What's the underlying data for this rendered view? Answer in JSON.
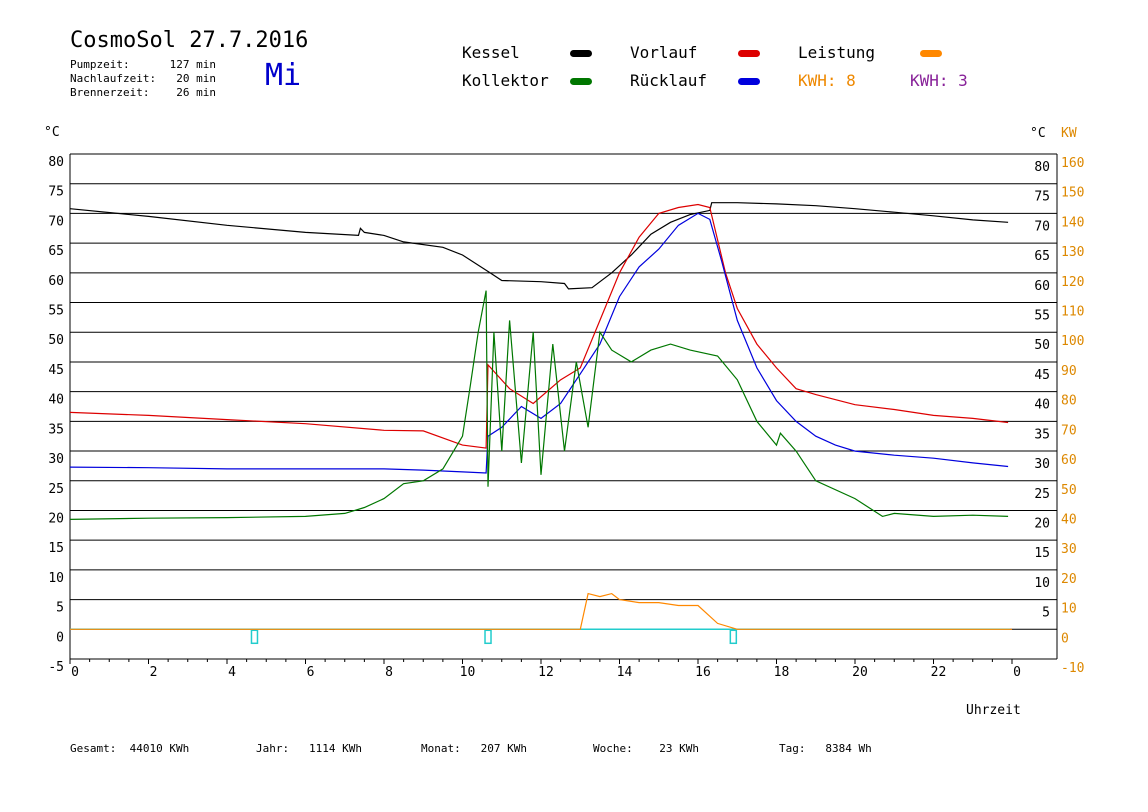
{
  "header": {
    "title": "CosmoSol 27.7.2016",
    "day": "Mi",
    "info": [
      {
        "label": "Pumpzeit:",
        "value": "127 min"
      },
      {
        "label": "Nachlaufzeit:",
        "value": "20 min"
      },
      {
        "label": "Brennerzeit:",
        "value": "26 min"
      }
    ]
  },
  "legend": {
    "kessel": {
      "label": "Kessel",
      "color": "#000000"
    },
    "vorlauf": {
      "label": "Vorlauf",
      "color": "#dd0000"
    },
    "leistung": {
      "label": "Leistung",
      "color": "#ff8800"
    },
    "kollektor": {
      "label": "Kollektor",
      "color": "#007700"
    },
    "ruecklauf": {
      "label": "Rücklauf",
      "color": "#0000dd"
    },
    "kwh1": {
      "label": "KWH: 8",
      "color": "#ee8800"
    },
    "kwh2": {
      "label": "KWH: 3",
      "color": "#882299"
    }
  },
  "footer": [
    {
      "label": "Gesamt:",
      "value": "44010 KWh"
    },
    {
      "label": "Jahr:",
      "value": "1114 KWh"
    },
    {
      "label": "Monat:",
      "value": "207 KWh"
    },
    {
      "label": "Woche:",
      "value": "23 KWh"
    },
    {
      "label": "Tag:",
      "value": "8384 Wh"
    }
  ],
  "chart_data": {
    "type": "line",
    "xlabel": "Uhrzeit",
    "xlim": [
      0,
      24
    ],
    "x_ticks": [
      "0",
      "2",
      "4",
      "6",
      "8",
      "10",
      "12",
      "14",
      "16",
      "18",
      "20",
      "22",
      "0"
    ],
    "y_left_unit": "°C",
    "y_left_ticks": [
      -5,
      0,
      5,
      10,
      15,
      20,
      25,
      30,
      35,
      40,
      45,
      50,
      55,
      60,
      65,
      70,
      75,
      80
    ],
    "y_right_unit_celsius": "°C",
    "y_right_unit_kw": "KW",
    "y_right_celsius_ticks": [
      5,
      10,
      15,
      20,
      25,
      30,
      35,
      40,
      45,
      50,
      55,
      60,
      65,
      70,
      75,
      80
    ],
    "y_right_kw_ticks": [
      -10,
      0,
      10,
      20,
      30,
      40,
      50,
      60,
      70,
      80,
      90,
      100,
      110,
      120,
      130,
      140,
      150,
      160
    ],
    "ylim": [
      -5,
      80
    ],
    "grid": "horizontal",
    "series": [
      {
        "name": "Kessel",
        "color": "#000000",
        "points": [
          [
            0,
            70.8
          ],
          [
            2,
            69.5
          ],
          [
            4,
            68
          ],
          [
            6,
            66.8
          ],
          [
            7.35,
            66.3
          ],
          [
            7.4,
            67.5
          ],
          [
            7.5,
            66.8
          ],
          [
            8,
            66.3
          ],
          [
            8.5,
            65.2
          ],
          [
            9.5,
            64.3
          ],
          [
            10,
            63
          ],
          [
            10.7,
            60
          ],
          [
            11,
            58.7
          ],
          [
            12,
            58.5
          ],
          [
            12.6,
            58.2
          ],
          [
            12.7,
            57.3
          ],
          [
            13.3,
            57.5
          ],
          [
            13.8,
            60
          ],
          [
            14.3,
            63
          ],
          [
            14.8,
            66.5
          ],
          [
            15.3,
            68.5
          ],
          [
            15.8,
            69.8
          ],
          [
            16.3,
            70.5
          ],
          [
            16.35,
            71.8
          ],
          [
            17,
            71.8
          ],
          [
            18,
            71.6
          ],
          [
            19,
            71.3
          ],
          [
            20,
            70.8
          ],
          [
            21,
            70.2
          ],
          [
            22,
            69.6
          ],
          [
            23,
            68.9
          ],
          [
            23.9,
            68.5
          ]
        ]
      },
      {
        "name": "Vorlauf",
        "color": "#dd0000",
        "points": [
          [
            0,
            36.5
          ],
          [
            2,
            36
          ],
          [
            4,
            35.3
          ],
          [
            6,
            34.6
          ],
          [
            8,
            33.5
          ],
          [
            9,
            33.4
          ],
          [
            10,
            31
          ],
          [
            10.6,
            30.5
          ],
          [
            10.65,
            44.5
          ],
          [
            11.2,
            40.5
          ],
          [
            11.8,
            38
          ],
          [
            12.5,
            42
          ],
          [
            13,
            44
          ],
          [
            13.5,
            52
          ],
          [
            14,
            60
          ],
          [
            14.5,
            66
          ],
          [
            15,
            70
          ],
          [
            15.5,
            71
          ],
          [
            16,
            71.5
          ],
          [
            16.3,
            71
          ],
          [
            16.7,
            60
          ],
          [
            17,
            54
          ],
          [
            17.5,
            48
          ],
          [
            18,
            44
          ],
          [
            18.5,
            40.5
          ],
          [
            19,
            39.5
          ],
          [
            20,
            37.8
          ],
          [
            21,
            37
          ],
          [
            22,
            36
          ],
          [
            23,
            35.5
          ],
          [
            23.9,
            34.8
          ]
        ]
      },
      {
        "name": "Rücklauf",
        "color": "#0000dd",
        "points": [
          [
            0,
            27.3
          ],
          [
            2,
            27.2
          ],
          [
            4,
            27
          ],
          [
            6,
            27
          ],
          [
            8,
            27
          ],
          [
            9,
            26.8
          ],
          [
            10,
            26.5
          ],
          [
            10.6,
            26.3
          ],
          [
            10.65,
            32.5
          ],
          [
            11,
            34
          ],
          [
            11.5,
            37.5
          ],
          [
            12,
            35.5
          ],
          [
            12.5,
            38
          ],
          [
            13,
            43
          ],
          [
            13.5,
            48
          ],
          [
            14,
            56
          ],
          [
            14.5,
            61
          ],
          [
            15,
            64
          ],
          [
            15.5,
            68
          ],
          [
            16,
            70
          ],
          [
            16.3,
            69
          ],
          [
            16.6,
            62
          ],
          [
            17,
            52
          ],
          [
            17.5,
            44
          ],
          [
            18,
            38.5
          ],
          [
            18.5,
            35
          ],
          [
            19,
            32.5
          ],
          [
            19.5,
            31
          ],
          [
            20,
            30
          ],
          [
            21,
            29.3
          ],
          [
            22,
            28.8
          ],
          [
            23,
            28
          ],
          [
            23.9,
            27.4
          ]
        ]
      },
      {
        "name": "Kollektor",
        "color": "#007700",
        "points": [
          [
            0,
            18.5
          ],
          [
            2,
            18.7
          ],
          [
            4,
            18.8
          ],
          [
            6,
            19
          ],
          [
            7,
            19.5
          ],
          [
            7.5,
            20.5
          ],
          [
            8,
            22
          ],
          [
            8.5,
            24.5
          ],
          [
            9,
            25
          ],
          [
            9.5,
            27
          ],
          [
            10,
            32.5
          ],
          [
            10.2,
            41
          ],
          [
            10.4,
            50
          ],
          [
            10.6,
            57
          ],
          [
            10.65,
            24
          ],
          [
            10.8,
            50
          ],
          [
            11,
            30
          ],
          [
            11.2,
            52
          ],
          [
            11.5,
            28
          ],
          [
            11.8,
            50
          ],
          [
            12,
            26
          ],
          [
            12.3,
            48
          ],
          [
            12.6,
            30
          ],
          [
            12.9,
            45
          ],
          [
            13.2,
            34
          ],
          [
            13.5,
            50
          ],
          [
            13.8,
            47
          ],
          [
            14.3,
            45
          ],
          [
            14.8,
            47
          ],
          [
            15.3,
            48
          ],
          [
            15.8,
            47
          ],
          [
            16.5,
            46
          ],
          [
            17,
            42
          ],
          [
            17.5,
            35
          ],
          [
            18,
            31
          ],
          [
            18.1,
            33
          ],
          [
            18.5,
            30
          ],
          [
            19,
            25
          ],
          [
            20,
            22
          ],
          [
            20.7,
            19
          ],
          [
            21,
            19.5
          ],
          [
            22,
            19
          ],
          [
            23,
            19.2
          ],
          [
            23.9,
            19
          ]
        ]
      },
      {
        "name": "Leistung",
        "color": "#ff8800",
        "points": [
          [
            0,
            0
          ],
          [
            13,
            0
          ],
          [
            13.2,
            6
          ],
          [
            13.5,
            5.5
          ],
          [
            13.8,
            6
          ],
          [
            14,
            5
          ],
          [
            14.5,
            4.5
          ],
          [
            15,
            4.5
          ],
          [
            15.5,
            4
          ],
          [
            16,
            4
          ],
          [
            16.5,
            1
          ],
          [
            17,
            0
          ],
          [
            24,
            0
          ]
        ]
      }
    ]
  }
}
